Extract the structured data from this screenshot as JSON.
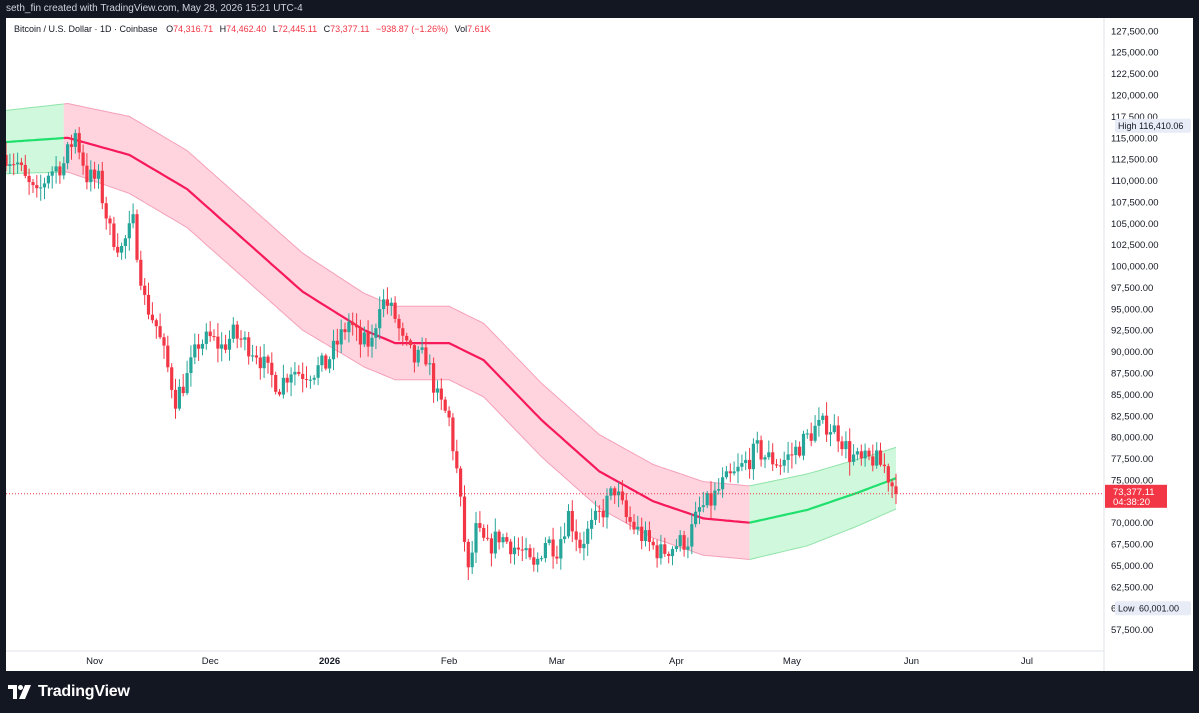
{
  "header": {
    "created_by": "seth_fin created with TradingView.com, May 28, 2026 15:21 UTC-4"
  },
  "footer": {
    "brand": "TradingView"
  },
  "legend": {
    "symbol": "Bitcoin / U.S. Dollar · 1D · Coinbase",
    "o_label": "O",
    "o_value": "74,316.71",
    "h_label": "H",
    "h_value": "74,462.40",
    "l_label": "L",
    "l_value": "72,445.11",
    "c_label": "C",
    "c_value": "73,377.11",
    "change": "−938.87 (−1.26%)",
    "vol_label": "Vol",
    "vol_value": "7.61K"
  },
  "colors": {
    "up": "#26a69a",
    "down": "#f23645",
    "band_red": "#ffcdd9",
    "band_green": "#c8f7d6",
    "mid_red": "#f7195a",
    "mid_green": "#1fe06d",
    "price_tag": "#f23645"
  },
  "chart_data": {
    "type": "candlestick",
    "symbol": "Bitcoin / U.S. Dollar",
    "interval": "1D",
    "exchange": "Coinbase",
    "ylim": [
      55000,
      129000
    ],
    "y_ticks": [
      "127,500.00",
      "125,000.00",
      "122,500.00",
      "120,000.00",
      "117,500.00",
      "115,000.00",
      "112,500.00",
      "110,000.00",
      "107,500.00",
      "105,000.00",
      "102,500.00",
      "100,000.00",
      "97,500.00",
      "95,000.00",
      "92,500.00",
      "90,000.00",
      "87,500.00",
      "85,000.00",
      "82,500.00",
      "80,000.00",
      "77,500.00",
      "75,000.00",
      "72,500.00",
      "70,000.00",
      "67,500.00",
      "65,000.00",
      "62,500.00",
      "60,000.00",
      "57,500.00"
    ],
    "x_ticks": [
      {
        "label": "Nov",
        "date": "2025-11-01"
      },
      {
        "label": "Dec",
        "date": "2025-12-01"
      },
      {
        "label": "2026",
        "date": "2026-01-01"
      },
      {
        "label": "Feb",
        "date": "2026-02-01"
      },
      {
        "label": "Mar",
        "date": "2026-03-01"
      },
      {
        "label": "Apr",
        "date": "2026-04-01"
      },
      {
        "label": "May",
        "date": "2026-05-01"
      },
      {
        "label": "Jun",
        "date": "2026-06-01"
      },
      {
        "label": "Jul",
        "date": "2026-07-01"
      }
    ],
    "high": {
      "label": "High",
      "value": "116,410.06"
    },
    "low": {
      "label": "Low",
      "value": "60,001.00"
    },
    "last_price": {
      "value": "73,377.11",
      "countdown": "04:38:20"
    },
    "close_path": [
      [
        "2025-10-09",
        113000
      ],
      [
        "2025-10-12",
        112000
      ],
      [
        "2025-10-14",
        110000
      ],
      [
        "2025-10-17",
        108000
      ],
      [
        "2025-10-20",
        111000
      ],
      [
        "2025-10-24",
        112000
      ],
      [
        "2025-10-27",
        115500
      ],
      [
        "2025-10-30",
        110500
      ],
      [
        "2025-11-02",
        110000
      ],
      [
        "2025-11-05",
        104000
      ],
      [
        "2025-11-08",
        102000
      ],
      [
        "2025-11-11",
        105000
      ],
      [
        "2025-11-14",
        96000
      ],
      [
        "2025-11-17",
        93000
      ],
      [
        "2025-11-20",
        88000
      ],
      [
        "2025-11-22",
        84500
      ],
      [
        "2025-11-25",
        87000
      ],
      [
        "2025-11-28",
        91000
      ],
      [
        "2025-12-01",
        91500
      ],
      [
        "2025-12-04",
        90500
      ],
      [
        "2025-12-07",
        92000
      ],
      [
        "2025-12-10",
        91000
      ],
      [
        "2025-12-13",
        90000
      ],
      [
        "2025-12-16",
        87500
      ],
      [
        "2025-12-19",
        86000
      ],
      [
        "2025-12-22",
        88000
      ],
      [
        "2025-12-25",
        87500
      ],
      [
        "2025-12-28",
        87800
      ],
      [
        "2025-12-31",
        88500
      ],
      [
        "2026-01-03",
        91000
      ],
      [
        "2026-01-06",
        93500
      ],
      [
        "2026-01-09",
        91000
      ],
      [
        "2026-01-12",
        91000
      ],
      [
        "2026-01-14",
        96000
      ],
      [
        "2026-01-16",
        95500
      ],
      [
        "2026-01-18",
        94000
      ],
      [
        "2026-01-20",
        91000
      ],
      [
        "2026-01-23",
        89000
      ],
      [
        "2026-01-26",
        89500
      ],
      [
        "2026-01-29",
        84500
      ],
      [
        "2026-02-01",
        82000
      ],
      [
        "2026-02-03",
        76000
      ],
      [
        "2026-02-06",
        64000
      ],
      [
        "2026-02-08",
        69000
      ],
      [
        "2026-02-11",
        67000
      ],
      [
        "2026-02-14",
        68500
      ],
      [
        "2026-02-17",
        67500
      ],
      [
        "2026-02-20",
        66500
      ],
      [
        "2026-02-23",
        64500
      ],
      [
        "2026-02-26",
        68000
      ],
      [
        "2026-03-01",
        67000
      ],
      [
        "2026-03-04",
        71000
      ],
      [
        "2026-03-07",
        67500
      ],
      [
        "2026-03-10",
        69500
      ],
      [
        "2026-03-13",
        71500
      ],
      [
        "2026-03-16",
        74000
      ],
      [
        "2026-03-19",
        70500
      ],
      [
        "2026-03-22",
        69000
      ],
      [
        "2026-03-25",
        67500
      ],
      [
        "2026-03-28",
        66500
      ],
      [
        "2026-04-01",
        67500
      ],
      [
        "2026-04-04",
        68000
      ],
      [
        "2026-04-07",
        71500
      ],
      [
        "2026-04-10",
        72500
      ],
      [
        "2026-04-13",
        74500
      ],
      [
        "2026-04-16",
        75500
      ],
      [
        "2026-04-19",
        77000
      ],
      [
        "2026-04-22",
        78500
      ],
      [
        "2026-04-25",
        77500
      ],
      [
        "2026-04-28",
        77000
      ],
      [
        "2026-05-01",
        78000
      ],
      [
        "2026-05-04",
        79500
      ],
      [
        "2026-05-07",
        81000
      ],
      [
        "2026-05-10",
        81500
      ],
      [
        "2026-05-13",
        80500
      ],
      [
        "2026-05-16",
        78000
      ],
      [
        "2026-05-19",
        77000
      ],
      [
        "2026-05-22",
        77500
      ],
      [
        "2026-05-25",
        76500
      ],
      [
        "2026-05-28",
        73377
      ]
    ],
    "band_mid": [
      [
        "2025-10-09",
        114500
      ],
      [
        "2025-10-25",
        115000
      ],
      [
        "2025-11-10",
        113000
      ],
      [
        "2025-11-25",
        109000
      ],
      [
        "2025-12-10",
        103000
      ],
      [
        "2025-12-25",
        97000
      ],
      [
        "2026-01-10",
        92500
      ],
      [
        "2026-01-18",
        91000
      ],
      [
        "2026-02-01",
        91000
      ],
      [
        "2026-02-10",
        89000
      ],
      [
        "2026-02-25",
        82000
      ],
      [
        "2026-03-12",
        76000
      ],
      [
        "2026-03-26",
        72500
      ],
      [
        "2026-04-08",
        70500
      ],
      [
        "2026-04-20",
        70000
      ],
      [
        "2026-05-05",
        71500
      ],
      [
        "2026-05-18",
        73500
      ],
      [
        "2026-05-28",
        75200
      ]
    ],
    "band_upper": [
      [
        "2025-10-09",
        118200
      ],
      [
        "2025-10-25",
        119000
      ],
      [
        "2025-11-10",
        117500
      ],
      [
        "2025-11-25",
        113500
      ],
      [
        "2025-12-10",
        107500
      ],
      [
        "2025-12-25",
        101500
      ],
      [
        "2026-01-10",
        96800
      ],
      [
        "2026-01-18",
        95300
      ],
      [
        "2026-02-01",
        95300
      ],
      [
        "2026-02-10",
        93300
      ],
      [
        "2026-02-25",
        86300
      ],
      [
        "2026-03-12",
        80300
      ],
      [
        "2026-03-26",
        76800
      ],
      [
        "2026-04-08",
        74800
      ],
      [
        "2026-04-20",
        74300
      ],
      [
        "2026-05-05",
        75700
      ],
      [
        "2026-05-18",
        77400
      ],
      [
        "2026-05-28",
        78800
      ]
    ],
    "band_lower": [
      [
        "2025-10-09",
        110800
      ],
      [
        "2025-10-25",
        111000
      ],
      [
        "2025-11-10",
        108500
      ],
      [
        "2025-11-25",
        104500
      ],
      [
        "2025-12-10",
        98500
      ],
      [
        "2025-12-25",
        92500
      ],
      [
        "2026-01-10",
        88200
      ],
      [
        "2026-01-18",
        86700
      ],
      [
        "2026-02-01",
        86700
      ],
      [
        "2026-02-10",
        84700
      ],
      [
        "2026-02-25",
        77700
      ],
      [
        "2026-03-12",
        71700
      ],
      [
        "2026-03-26",
        68200
      ],
      [
        "2026-04-08",
        66200
      ],
      [
        "2026-04-20",
        65700
      ],
      [
        "2026-05-05",
        67300
      ],
      [
        "2026-05-18",
        69600
      ],
      [
        "2026-05-28",
        71600
      ]
    ],
    "band_color_change": [
      {
        "date": "2025-10-24",
        "from": "green",
        "to": "red"
      },
      {
        "date": "2026-04-20",
        "from": "red",
        "to": "green"
      }
    ]
  }
}
